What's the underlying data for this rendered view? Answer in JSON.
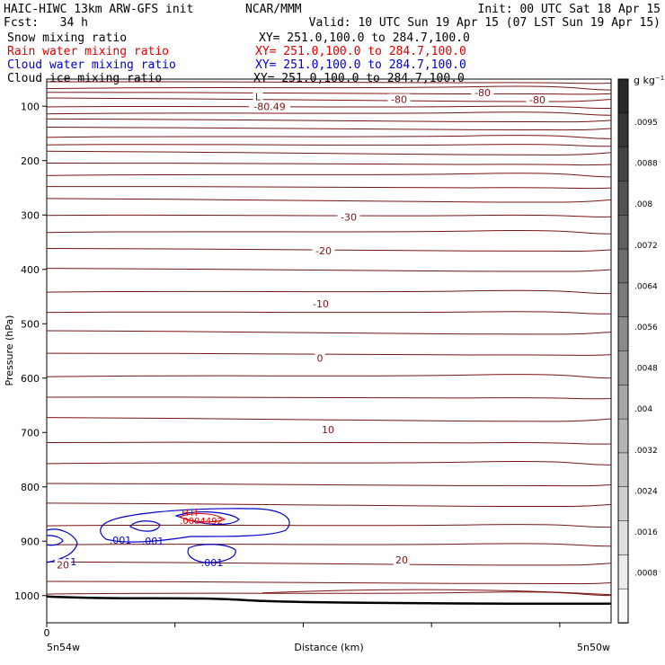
{
  "header": {
    "title": "HAIC-HIWC 13km ARW-GFS init",
    "org": "NCAR/MMM",
    "init": "Init: 00 UTC Sat 18 Apr 15",
    "fcst": "Fcst:   34 h",
    "valid": "Valid: 10 UTC Sun 19 Apr 15 (07 LST Sun 19 Apr 15)"
  },
  "fields": [
    {
      "name": "Snow mixing ratio",
      "xy": "XY= 251.0,100.0 to 284.7,100.0",
      "color": "#000000"
    },
    {
      "name": "Rain water mixing ratio",
      "xy": "XY= 251.0,100.0 to 284.7,100.0",
      "color": "#e00000"
    },
    {
      "name": "Cloud water mixing ratio",
      "xy": "XY= 251.0,100.0 to 284.7,100.0",
      "color": "#0000cc"
    },
    {
      "name": "Cloud ice mixing ratio",
      "xy": "XY= 251.0,100.0 to 284.7,100.0",
      "color": "#000000"
    }
  ],
  "chart_data": {
    "type": "contour",
    "xlabel": "Distance (km)",
    "ylabel": "Pressure (hPa)",
    "x_start_label": "5n54w",
    "x_end_label": "5n50w",
    "x_origin_tick": "0",
    "yticks": [
      100,
      200,
      300,
      400,
      500,
      600,
      700,
      800,
      900,
      1000
    ],
    "yrange": [
      50,
      1050
    ],
    "colorbar": {
      "unit": "g kg",
      "unit_exp": "−1",
      "labels": [
        ".0095",
        ".0088",
        ".008",
        ".0072",
        ".0064",
        ".0056",
        ".0048",
        ".004",
        ".0032",
        ".0024",
        ".0016",
        ".0008"
      ]
    },
    "temperature_isotherms": {
      "color": "#7a1414",
      "levels_p": [
        55,
        65,
        75,
        87,
        100,
        112,
        125,
        140,
        155,
        170,
        185,
        205,
        225,
        248,
        272,
        300,
        330,
        363,
        400,
        440,
        478,
        515,
        555,
        595,
        635,
        675,
        718,
        755,
        795,
        832,
        870,
        905,
        940,
        975,
        995
      ],
      "labels": [
        {
          "text": "-80.49",
          "p": 100
        },
        {
          "text": "-80",
          "p": 87
        },
        {
          "text": "-80",
          "p": 75
        },
        {
          "text": "-80",
          "p": 88
        },
        {
          "text": "-30",
          "p": 304
        },
        {
          "text": "-20",
          "p": 366
        },
        {
          "text": "-10",
          "p": 463
        },
        {
          "text": "0",
          "p": 563
        },
        {
          "text": "10",
          "p": 695
        },
        {
          "text": "20",
          "p": 934
        },
        {
          "text": "20",
          "p": 943
        },
        {
          "text": "L",
          "p": 82
        }
      ]
    },
    "freezing_level_p": 563,
    "cloud_water": {
      "color": "#0000cc",
      "labels": [
        ".001",
        ".001",
        ".001",
        ".001"
      ]
    },
    "rain_water": {
      "color": "#e00000",
      "labels": [
        "H",
        "H",
        ".0004492"
      ]
    },
    "terrain_p": 1005
  }
}
